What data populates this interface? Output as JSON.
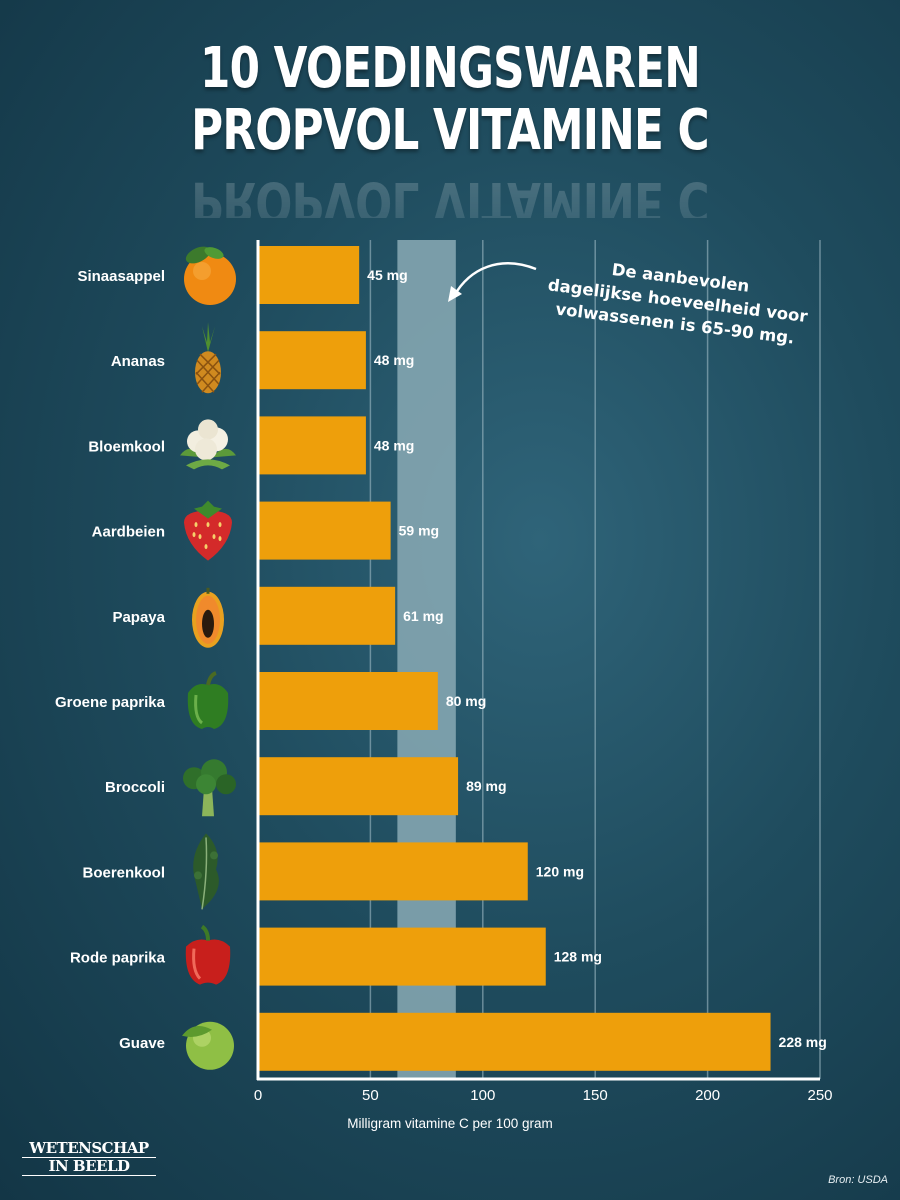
{
  "header": {
    "title_line1": "10 VOEDINGSWAREN",
    "title_line2": "PROPVOL VITAMINE C"
  },
  "annotation": {
    "line1": "De aanbevolen",
    "line2": "dagelijkse hoeveelheid voor",
    "line3": "volwassenen is 65-90 mg."
  },
  "footer": {
    "logo_line1": "WETENSCHAP",
    "logo_line2": "IN BEELD",
    "source": "Bron: USDA"
  },
  "colors": {
    "bar": "#ee9f0b",
    "band": "#8aaab5",
    "gridline": "#a9c3cd",
    "axis": "#ffffff"
  },
  "icons": [
    "orange-icon",
    "pineapple-icon",
    "cauliflower-icon",
    "strawberry-icon",
    "papaya-icon",
    "green-pepper-icon",
    "broccoli-icon",
    "kale-icon",
    "red-pepper-icon",
    "guava-icon"
  ],
  "chart_data": {
    "type": "bar",
    "orientation": "horizontal",
    "categories": [
      "Sinaasappel",
      "Ananas",
      "Bloemkool",
      "Aardbeien",
      "Papaya",
      "Groene paprika",
      "Broccoli",
      "Boerenkool",
      "Rode paprika",
      "Guave"
    ],
    "values": [
      45,
      48,
      48,
      59,
      61,
      80,
      89,
      120,
      128,
      228
    ],
    "value_labels": [
      "45 mg",
      "48 mg",
      "48 mg",
      "59 mg",
      "61 mg",
      "80 mg",
      "89 mg",
      "120 mg",
      "128 mg",
      "228 mg"
    ],
    "xlabel": "Milligram vitamine C per 100 gram",
    "xlim": [
      0,
      250
    ],
    "xticks": [
      0,
      50,
      100,
      150,
      200,
      250
    ],
    "reference_band": [
      62,
      88
    ],
    "grid": true
  }
}
